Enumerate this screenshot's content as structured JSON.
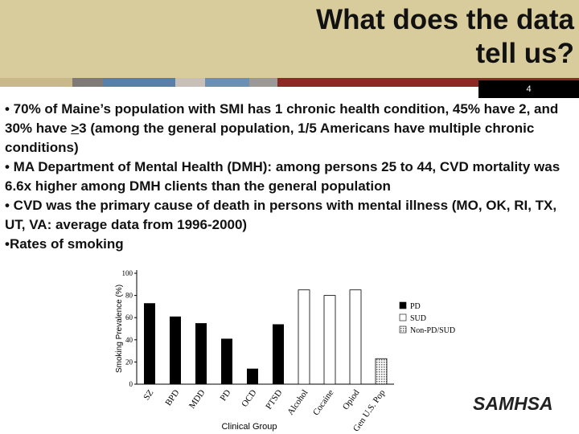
{
  "slide": {
    "title": [
      "What does the data",
      "tell us?"
    ],
    "page_number": "4",
    "bullets": [
      [
        "• 70% of Maine’s population with SMI has 1 chronic health condition, 45% have 2, and 30% have ",
        ">",
        "3 (among the general population, 1/5 Americans have multiple chronic conditions)"
      ],
      [
        "• MA Department of Mental Health (DMH): among persons 25 to 44, CVD mortality was 6.6x higher among DMH clients than the general population"
      ],
      [
        "• CVD was the primary cause of death in persons with mental illness (MO, OK, RI, TX, UT, VA: average data from 1996-2000)"
      ],
      [
        "•Rates of smoking"
      ]
    ],
    "logo": "SAMHSA"
  },
  "chart_data": {
    "type": "bar",
    "ylabel": "Smoking Prevalence (%)",
    "xlabel": "Clinical Group",
    "categories": [
      "SZ",
      "BPD",
      "MDD",
      "PD",
      "OCD",
      "PTSD",
      "Alcohol",
      "Cocaine",
      "Opiod",
      "Gen U.S. Pop"
    ],
    "series": [
      {
        "name": "PD",
        "color": "#000000",
        "values": [
          73,
          61,
          55,
          41,
          14,
          54,
          null,
          null,
          null,
          null
        ]
      },
      {
        "name": "SUD",
        "color": "#ffffff",
        "values": [
          null,
          null,
          null,
          null,
          null,
          null,
          85,
          80,
          85,
          null
        ]
      },
      {
        "name": "Non-PD/SUD",
        "color": "#bbbbbb",
        "values": [
          null,
          null,
          null,
          null,
          null,
          null,
          null,
          null,
          null,
          23
        ]
      }
    ],
    "ylim": [
      0,
      100
    ],
    "yticks": [
      0,
      20,
      40,
      60,
      80,
      100
    ],
    "legend": "right"
  }
}
